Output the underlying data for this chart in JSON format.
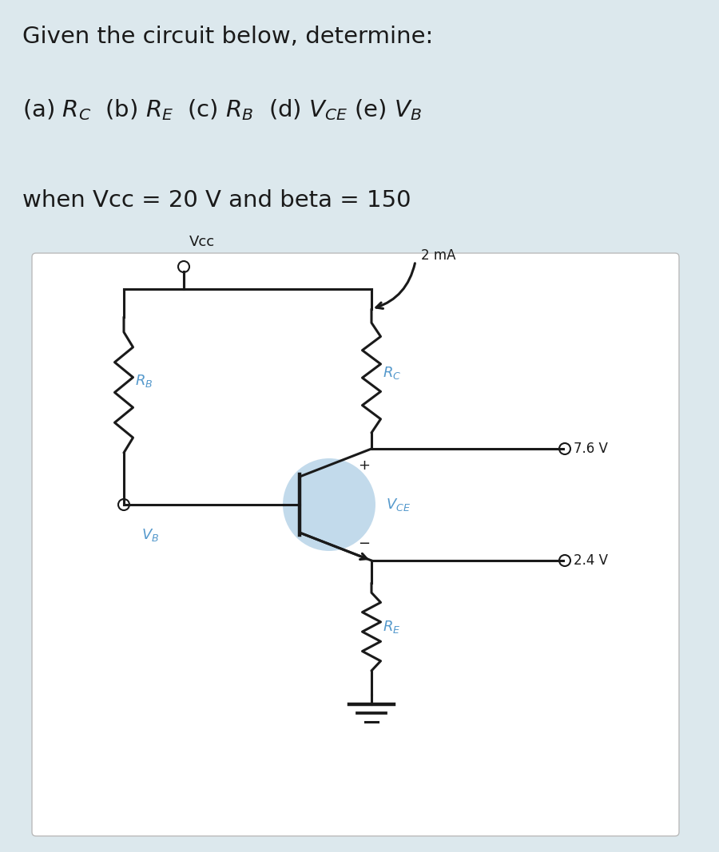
{
  "bg_color": "#dce8ed",
  "text_color": "#1a1a1a",
  "circuit_bg": "#ffffff",
  "wire_color": "#1a1a1a",
  "label_color": "#5599cc",
  "transistor_fill": "#b8d4e8",
  "line1": "Given the circuit below, determine:",
  "line2": "(a) $R_C$  (b) $R_E$  (c) $R_B$  (d) $V_{CE}$ (e) $V_B$",
  "line3": "when Vcc = 20 V and beta = 150",
  "vcc_text": "Vcc",
  "rb_text": "$R_B$",
  "rc_text": "$R_C$",
  "re_text": "$R_E$",
  "vb_text": "$V_B$",
  "vce_text": "$V_{CE}$",
  "current_text": "2 mA",
  "v76_text": "7.6 V",
  "v24_text": "2.4 V",
  "fontsize_header": 21,
  "fontsize_sub": 21,
  "fontsize_cond": 21,
  "fontsize_circuit": 13
}
